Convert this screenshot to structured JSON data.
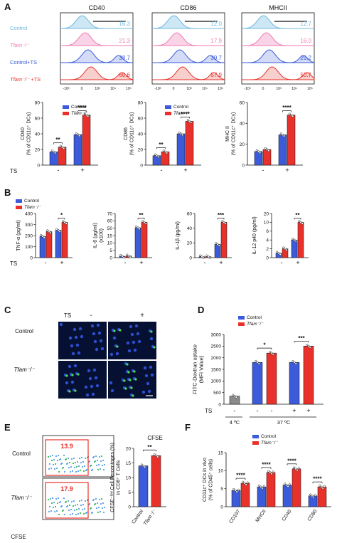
{
  "colors": {
    "control": "#3b5bdb",
    "tfam": "#e8312b",
    "control_light": "#6fb8e0",
    "tfam_light": "#f07ab4",
    "grey": "#8a8a8a",
    "cfse_box": "#e8312b"
  },
  "panel_letters": [
    "A",
    "B",
    "C",
    "D",
    "E",
    "F"
  ],
  "panelA": {
    "histograms": [
      {
        "title": "CD40",
        "values": [
          "16.3",
          "21.3",
          "38.7",
          "60.6"
        ]
      },
      {
        "title": "CD86",
        "values": [
          "12.0",
          "17.9",
          "39.7",
          "57.9"
        ]
      },
      {
        "title": "MHCII",
        "values": [
          "12.7",
          "16.0",
          "29.2",
          "50.7"
        ]
      }
    ],
    "row_labels": [
      "Control",
      "Tfam⁻/⁻",
      "Control+TS",
      "Tfam⁻/⁻ +TS"
    ],
    "x_ticks": [
      "-10³",
      "0",
      "10³",
      "10⁴",
      "10⁵"
    ],
    "legend": [
      "Control",
      "Tfam⁻/⁻"
    ],
    "ts_label": "TS",
    "ts_signs": [
      "-",
      "+"
    ],
    "bars": [
      {
        "ylabel": "CD40\n(% of CD11c⁺ DCs)",
        "ylim": [
          0,
          80
        ],
        "ticks": [
          "0",
          "20",
          "40",
          "60",
          "80"
        ],
        "values": [
          17,
          23,
          39,
          64
        ],
        "sig": [
          "**",
          "****"
        ]
      },
      {
        "ylabel": "CD86\n(% of CD11c⁺ DCs)",
        "ylim": [
          0,
          80
        ],
        "ticks": [
          "0",
          "20",
          "40",
          "60",
          "80"
        ],
        "values": [
          12,
          17,
          40,
          56
        ],
        "sig": [
          "**",
          "****"
        ]
      },
      {
        "ylabel": "MHC II\n(% of CD11c⁺ DCs)",
        "ylim": [
          0,
          60
        ],
        "ticks": [
          "0",
          "20",
          "40",
          "60"
        ],
        "values": [
          13,
          15,
          29,
          48
        ],
        "sig": [
          "****"
        ]
      }
    ]
  },
  "panelB": {
    "legend": [
      "Control",
      "Tfam⁻/⁻"
    ],
    "ts_label": "TS",
    "charts": [
      {
        "ylabel": "TNF-α (pg/ml)",
        "ticks": [
          "0",
          "100",
          "200",
          "300",
          "400"
        ],
        "ylim": [
          0,
          400
        ],
        "values": [
          160,
          195,
          205,
          265
        ],
        "sig": "*"
      },
      {
        "ylabel": "IL-6 (pg/ml)\n(x100)",
        "ticks": [
          "0",
          "5",
          "10",
          "15",
          "50",
          "60",
          "70"
        ],
        "values": [
          2.5,
          3,
          55,
          65
        ],
        "sig": "**"
      },
      {
        "ylabel": "IL-1β (pg/ml)",
        "ticks": [
          "0",
          "20",
          "40",
          "60"
        ],
        "ylim": [
          0,
          60
        ],
        "values": [
          1,
          1,
          15,
          40
        ],
        "sig": "***"
      },
      {
        "ylabel": "IL-12 p40 (pg/ml)",
        "ticks": [
          "0",
          "2",
          "4",
          "6",
          "10",
          "20"
        ],
        "values": [
          2,
          4,
          8,
          16
        ],
        "sig": "**"
      }
    ]
  },
  "panelC": {
    "ts_label": "TS",
    "col_signs": [
      "-",
      "+"
    ],
    "row_labels": [
      "Control",
      "Tfam⁻/⁻"
    ]
  },
  "panelD": {
    "legend": [
      "Control",
      "Tfam⁻/⁻"
    ],
    "ylabel": "FITC-Dextran uptake\n(MFI Value)",
    "ticks": [
      "0",
      "500",
      "1000",
      "1500",
      "2000",
      "2500",
      "3000"
    ],
    "ylim": [
      0,
      3000
    ],
    "values": [
      350,
      1800,
      2200,
      1800,
      2500
    ],
    "sig": [
      "*",
      "***"
    ],
    "ts_label": "TS",
    "ts_signs": [
      "-",
      "-",
      "-",
      "+",
      "+"
    ],
    "temps": [
      "4 ºC",
      "37 ºC"
    ]
  },
  "panelE": {
    "row_labels": [
      "Control",
      "Tfam⁻/⁻"
    ],
    "gate_values": [
      "13.9",
      "17.9"
    ],
    "x_label": "CFSE",
    "chart_title": "CFSE",
    "ylabel": "CFSE⁻ˡᵒʷ Cell Percentages (%)\nin CD8⁺ T Cells",
    "ticks": [
      "0",
      "5",
      "10",
      "15",
      "20"
    ],
    "ylim": [
      0,
      20
    ],
    "values": [
      14,
      17.5
    ],
    "categories": [
      "Control",
      "Tfam⁻/⁻"
    ],
    "sig": "**"
  },
  "panelF": {
    "legend": [
      "Control",
      "Tfam⁻/⁻"
    ],
    "ylabel": "CD11c⁺ DCs in vivo\n(% of CD45⁺ cells)",
    "ticks": [
      "0",
      "5",
      "10",
      "15"
    ],
    "ylim": [
      0,
      15
    ],
    "categories": [
      "CD197",
      "MHCII",
      "CD40",
      "CD80"
    ],
    "control_values": [
      4.5,
      5.5,
      6,
      3
    ],
    "tfam_values": [
      6.5,
      9.5,
      10.5,
      5.5
    ],
    "sig": [
      "****",
      "****",
      "****",
      "****"
    ]
  },
  "chart_data": [
    {
      "type": "bar",
      "title": "",
      "categories": [
        "-",
        "+"
      ],
      "ylabel": "CD40 (% of CD11c+ DCs)",
      "xlabel": "TS",
      "ylim": [
        0,
        80
      ],
      "series": [
        {
          "name": "Control",
          "values": [
            17,
            39
          ]
        },
        {
          "name": "Tfam-/-",
          "values": [
            23,
            64
          ]
        }
      ]
    },
    {
      "type": "bar",
      "title": "",
      "categories": [
        "-",
        "+"
      ],
      "ylabel": "CD86 (% of CD11c+ DCs)",
      "xlabel": "TS",
      "ylim": [
        0,
        80
      ],
      "series": [
        {
          "name": "Control",
          "values": [
            12,
            40
          ]
        },
        {
          "name": "Tfam-/-",
          "values": [
            17,
            56
          ]
        }
      ]
    },
    {
      "type": "bar",
      "title": "",
      "categories": [
        "-",
        "+"
      ],
      "ylabel": "MHC II (% of CD11c+ DCs)",
      "xlabel": "TS",
      "ylim": [
        0,
        60
      ],
      "series": [
        {
          "name": "Control",
          "values": [
            13,
            29
          ]
        },
        {
          "name": "Tfam-/-",
          "values": [
            15,
            48
          ]
        }
      ]
    },
    {
      "type": "bar",
      "title": "",
      "categories": [
        "-",
        "+"
      ],
      "ylabel": "TNF-α (pg/ml)",
      "xlabel": "TS",
      "ylim": [
        0,
        400
      ],
      "series": [
        {
          "name": "Control",
          "values": [
            160,
            205
          ]
        },
        {
          "name": "Tfam-/-",
          "values": [
            195,
            265
          ]
        }
      ]
    },
    {
      "type": "bar",
      "title": "",
      "categories": [
        "-",
        "+"
      ],
      "ylabel": "IL-6 (pg/ml) (x100)",
      "xlabel": "TS",
      "series": [
        {
          "name": "Control",
          "values": [
            2.5,
            55
          ]
        },
        {
          "name": "Tfam-/-",
          "values": [
            3,
            65
          ]
        }
      ]
    },
    {
      "type": "bar",
      "title": "",
      "categories": [
        "-",
        "+"
      ],
      "ylabel": "IL-1β (pg/ml)",
      "xlabel": "TS",
      "ylim": [
        0,
        60
      ],
      "series": [
        {
          "name": "Control",
          "values": [
            1,
            15
          ]
        },
        {
          "name": "Tfam-/-",
          "values": [
            1,
            40
          ]
        }
      ]
    },
    {
      "type": "bar",
      "title": "",
      "categories": [
        "-",
        "+"
      ],
      "ylabel": "IL-12 p40 (pg/ml)",
      "xlabel": "TS",
      "series": [
        {
          "name": "Control",
          "values": [
            2,
            8
          ]
        },
        {
          "name": "Tfam-/-",
          "values": [
            4,
            16
          ]
        }
      ]
    },
    {
      "type": "bar",
      "title": "",
      "categories": [
        "4 ºC",
        "37 ºC -",
        "37 ºC -",
        "37 ºC +",
        "37 ºC +"
      ],
      "ylabel": "FITC-Dextran uptake (MFI Value)",
      "ylim": [
        0,
        3000
      ],
      "series": [
        {
          "name": "",
          "values": [
            350,
            1800,
            2200,
            1800,
            2500
          ]
        }
      ]
    },
    {
      "type": "bar",
      "title": "CFSE",
      "categories": [
        "Control",
        "Tfam-/-"
      ],
      "ylabel": "CFSE low Cell Percentages (%) in CD8+ T Cells",
      "ylim": [
        0,
        20
      ],
      "series": [
        {
          "name": "",
          "values": [
            14,
            17.5
          ]
        }
      ]
    },
    {
      "type": "bar",
      "title": "",
      "categories": [
        "CD197",
        "MHCII",
        "CD40",
        "CD80"
      ],
      "ylabel": "CD11c+ DCs in vivo (% of CD45+ cells)",
      "ylim": [
        0,
        15
      ],
      "series": [
        {
          "name": "Control",
          "values": [
            4.5,
            5.5,
            6,
            3
          ]
        },
        {
          "name": "Tfam-/-",
          "values": [
            6.5,
            9.5,
            10.5,
            5.5
          ]
        }
      ]
    }
  ]
}
